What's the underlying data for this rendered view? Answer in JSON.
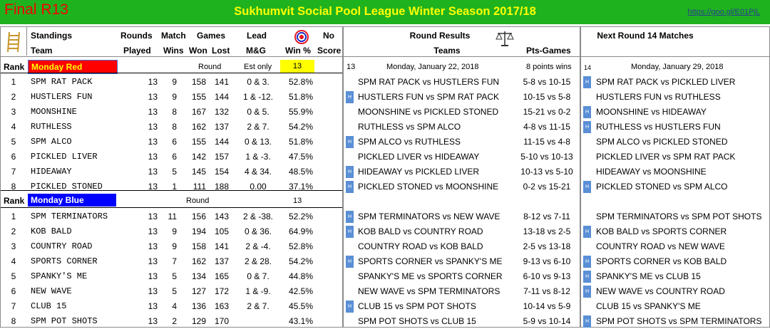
{
  "banner": {
    "final_label": "Final R13",
    "title": "Sukhumvit Social Pool League Winter Season 2017/18",
    "link": "https://goo.gl/E01PjL"
  },
  "colors": {
    "banner": "#1fb21f",
    "title": "#ffff00",
    "red_division": "#ff0000",
    "blue_division": "#0000ff",
    "round_highlight": "#ffff00"
  },
  "standings": {
    "headers": {
      "standings": "Standings",
      "team": "Team",
      "rounds": "Rounds",
      "played": "Played",
      "match": "Match",
      "wins": "Wins",
      "games": "Games",
      "won": "Won",
      "lost": "Lost",
      "lead": "Lead",
      "mg": "M&G",
      "win_pct": "Win %",
      "no": "No",
      "score": "Score",
      "rank": "Rank"
    },
    "divisions": [
      {
        "name": "Monday Red",
        "round_label": "Round",
        "est_label": "Est only",
        "round_value": "13",
        "teams": [
          {
            "rank": "1",
            "team": "SPM RAT PACK",
            "played": "13",
            "wins": "9",
            "won": "158",
            "lost": "141",
            "lead": "0 & 3.",
            "pct": "52.8%"
          },
          {
            "rank": "2",
            "team": "HUSTLERS FUN",
            "played": "13",
            "wins": "9",
            "won": "155",
            "lost": "144",
            "lead": "1 & -12.",
            "pct": "51.8%"
          },
          {
            "rank": "3",
            "team": "MOONSHINE",
            "played": "13",
            "wins": "8",
            "won": "167",
            "lost": "132",
            "lead": "0 & 5.",
            "pct": "55.9%"
          },
          {
            "rank": "4",
            "team": "RUTHLESS",
            "played": "13",
            "wins": "8",
            "won": "162",
            "lost": "137",
            "lead": "2 & 7.",
            "pct": "54.2%"
          },
          {
            "rank": "5",
            "team": "SPM ALCO",
            "played": "13",
            "wins": "6",
            "won": "155",
            "lost": "144",
            "lead": "0 & 13.",
            "pct": "51.8%"
          },
          {
            "rank": "6",
            "team": "PICKLED LIVER",
            "played": "13",
            "wins": "6",
            "won": "142",
            "lost": "157",
            "lead": "1 & -3.",
            "pct": "47.5%"
          },
          {
            "rank": "7",
            "team": "HIDEAWAY",
            "played": "13",
            "wins": "5",
            "won": "145",
            "lost": "154",
            "lead": "4 & 34.",
            "pct": "48.5%"
          },
          {
            "rank": "8",
            "team": "PICKLED STONED",
            "played": "13",
            "wins": "1",
            "won": "111",
            "lost": "188",
            "lead": "0.00",
            "pct": "37.1%"
          }
        ]
      },
      {
        "name": "Monday Blue",
        "round_label": "Round",
        "est_label": "",
        "round_value": "13",
        "teams": [
          {
            "rank": "1",
            "team": "SPM TERMINATORS",
            "played": "13",
            "wins": "11",
            "won": "156",
            "lost": "143",
            "lead": "2 & -38.",
            "pct": "52.2%"
          },
          {
            "rank": "2",
            "team": "KOB BALD",
            "played": "13",
            "wins": "9",
            "won": "194",
            "lost": "105",
            "lead": "0 & 36.",
            "pct": "64.9%"
          },
          {
            "rank": "3",
            "team": "COUNTRY ROAD",
            "played": "13",
            "wins": "9",
            "won": "158",
            "lost": "141",
            "lead": "2 & -4.",
            "pct": "52.8%"
          },
          {
            "rank": "4",
            "team": "SPORTS CORNER",
            "played": "13",
            "wins": "7",
            "won": "162",
            "lost": "137",
            "lead": "2 & 28.",
            "pct": "54.2%"
          },
          {
            "rank": "5",
            "team": "SPANKY'S ME",
            "played": "13",
            "wins": "5",
            "won": "134",
            "lost": "165",
            "lead": "0 & 7.",
            "pct": "44.8%"
          },
          {
            "rank": "6",
            "team": "NEW WAVE",
            "played": "13",
            "wins": "5",
            "won": "127",
            "lost": "172",
            "lead": "1 & -9.",
            "pct": "42.5%"
          },
          {
            "rank": "7",
            "team": "CLUB 15",
            "played": "13",
            "wins": "4",
            "won": "136",
            "lost": "163",
            "lead": "2 & 7.",
            "pct": "45.5%"
          },
          {
            "rank": "8",
            "team": "SPM POT SHOTS",
            "played": "13",
            "wins": "2",
            "won": "129",
            "lost": "170",
            "lead": "",
            "pct": "43.1%"
          }
        ]
      }
    ]
  },
  "results": {
    "title": "Round Results",
    "teams_label": "Teams",
    "pts_label": "Pts-Games",
    "round_no": "13",
    "date": "Monday, January 22, 2018",
    "note": "8 points wins",
    "red": [
      {
        "match": "SPM RAT PACK vs HUSTLERS FUN",
        "score": "5-8 vs 10-15",
        "flag": false
      },
      {
        "match": "HUSTLERS FUN vs SPM RAT PACK",
        "score": "10-15 vs 5-8",
        "flag": true
      },
      {
        "match": "MOONSHINE vs PICKLED STONED",
        "score": "15-21 vs 0-2",
        "flag": false
      },
      {
        "match": "RUTHLESS vs SPM ALCO",
        "score": "4-8 vs 11-15",
        "flag": false
      },
      {
        "match": "SPM ALCO vs RUTHLESS",
        "score": "11-15 vs 4-8",
        "flag": true
      },
      {
        "match": "PICKLED LIVER vs HIDEAWAY",
        "score": "5-10 vs 10-13",
        "flag": false
      },
      {
        "match": "HIDEAWAY vs PICKLED LIVER",
        "score": "10-13 vs 5-10",
        "flag": true
      },
      {
        "match": "PICKLED STONED  vs MOONSHINE",
        "score": "0-2 vs 15-21",
        "flag": true
      }
    ],
    "blue": [
      {
        "match": "SPM TERMINATORS vs NEW WAVE",
        "score": "8-12 vs 7-11",
        "flag": true
      },
      {
        "match": "KOB BALD vs COUNTRY ROAD",
        "score": "13-18 vs 2-5",
        "flag": true
      },
      {
        "match": "COUNTRY ROAD vs KOB BALD",
        "score": "2-5 vs 13-18",
        "flag": false
      },
      {
        "match": "SPORTS CORNER vs SPANKY'S ME",
        "score": "9-13 vs 6-10",
        "flag": true
      },
      {
        "match": "SPANKY'S ME vs SPORTS CORNER",
        "score": "6-10 vs 9-13",
        "flag": false
      },
      {
        "match": "NEW WAVE vs SPM TERMINATORS",
        "score": "7-11 vs 8-12",
        "flag": false
      },
      {
        "match": "CLUB 15 vs SPM POT SHOTS",
        "score": "10-14 vs 5-9",
        "flag": true
      },
      {
        "match": "SPM POT SHOTS vs CLUB 15",
        "score": "5-9 vs 10-14",
        "flag": false
      }
    ]
  },
  "next_round": {
    "title": "Next Round  14 Matches",
    "round_no": "14",
    "date": "Monday, January 29, 2018",
    "red": [
      {
        "match": "SPM RAT PACK vs PICKLED LIVER",
        "flag": true
      },
      {
        "match": "HUSTLERS FUN vs RUTHLESS",
        "flag": false
      },
      {
        "match": "MOONSHINE vs HIDEAWAY",
        "flag": true
      },
      {
        "match": "RUTHLESS vs HUSTLERS FUN",
        "flag": true
      },
      {
        "match": "SPM ALCO vs PICKLED STONED",
        "flag": false
      },
      {
        "match": "PICKLED LIVER vs SPM RAT PACK",
        "flag": false
      },
      {
        "match": "HIDEAWAY vs MOONSHINE",
        "flag": false
      },
      {
        "match": "PICKLED STONED  vs SPM ALCO",
        "flag": true
      }
    ],
    "blue": [
      {
        "match": "SPM TERMINATORS vs SPM POT SHOTS",
        "flag": false
      },
      {
        "match": "KOB BALD vs SPORTS CORNER",
        "flag": true
      },
      {
        "match": "COUNTRY ROAD vs NEW WAVE",
        "flag": false
      },
      {
        "match": "SPORTS CORNER vs KOB BALD",
        "flag": true
      },
      {
        "match": "SPANKY'S ME vs CLUB 15",
        "flag": true
      },
      {
        "match": "NEW WAVE vs COUNTRY ROAD",
        "flag": true
      },
      {
        "match": "CLUB 15 vs SPANKY'S ME",
        "flag": false
      },
      {
        "match": "SPM POT SHOTS vs SPM TERMINATORS",
        "flag": true
      }
    ]
  }
}
